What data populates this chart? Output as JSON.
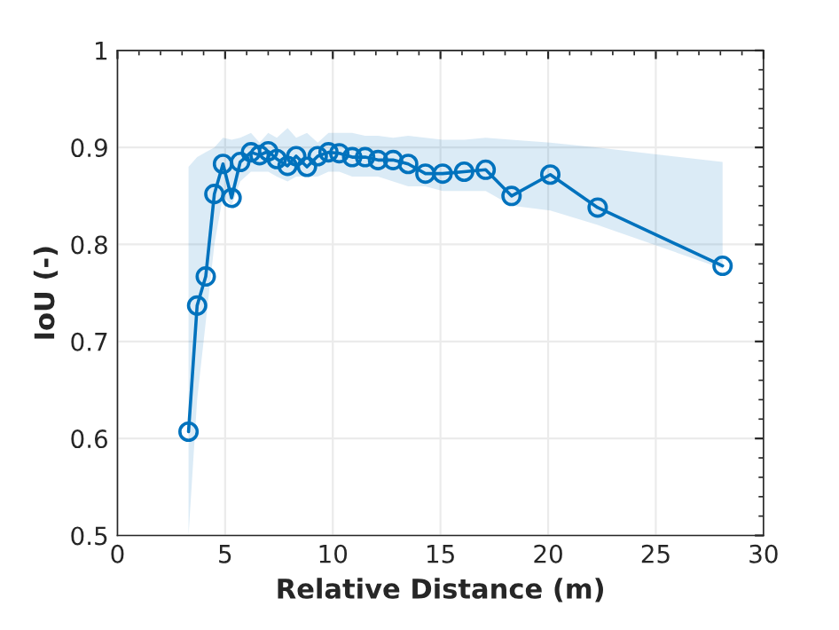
{
  "chart_data": {
    "type": "line",
    "xlabel": "Relative Distance (m)",
    "ylabel": "IoU (-)",
    "x": [
      3.3,
      3.7,
      4.1,
      4.5,
      4.9,
      5.3,
      5.7,
      6.2,
      6.6,
      7.0,
      7.4,
      7.9,
      8.3,
      8.8,
      9.3,
      9.8,
      10.3,
      10.9,
      11.5,
      12.1,
      12.8,
      13.5,
      14.3,
      15.1,
      16.1,
      17.1,
      18.3,
      20.1,
      22.3,
      28.1
    ],
    "series": [
      {
        "color": "#0072bd",
        "values": [
          0.607,
          0.737,
          0.767,
          0.852,
          0.883,
          0.848,
          0.885,
          0.895,
          0.892,
          0.896,
          0.888,
          0.881,
          0.891,
          0.88,
          0.891,
          0.895,
          0.894,
          0.89,
          0.89,
          0.887,
          0.887,
          0.883,
          0.873,
          0.873,
          0.875,
          0.877,
          0.85,
          0.872,
          0.838,
          0.778
        ],
        "lower": [
          0.5,
          0.64,
          0.72,
          0.8,
          0.85,
          0.84,
          0.865,
          0.875,
          0.875,
          0.875,
          0.87,
          0.865,
          0.87,
          0.87,
          0.87,
          0.875,
          0.875,
          0.87,
          0.87,
          0.87,
          0.865,
          0.86,
          0.86,
          0.855,
          0.855,
          0.855,
          0.84,
          0.835,
          0.82,
          0.775
        ],
        "upper": [
          0.88,
          0.89,
          0.895,
          0.9,
          0.91,
          0.908,
          0.91,
          0.915,
          0.905,
          0.915,
          0.91,
          0.92,
          0.91,
          0.915,
          0.905,
          0.915,
          0.915,
          0.915,
          0.912,
          0.912,
          0.91,
          0.912,
          0.91,
          0.908,
          0.908,
          0.91,
          0.908,
          0.905,
          0.9,
          0.885
        ]
      }
    ],
    "marker": "circle",
    "line_style": "solid",
    "grid": true,
    "xlim": [
      0,
      30
    ],
    "xticks": [
      0,
      5,
      10,
      15,
      20,
      25,
      30
    ],
    "ylim": [
      0.5,
      1
    ],
    "yticks": [
      0.5,
      0.6,
      0.7,
      0.8,
      0.9,
      1
    ]
  }
}
